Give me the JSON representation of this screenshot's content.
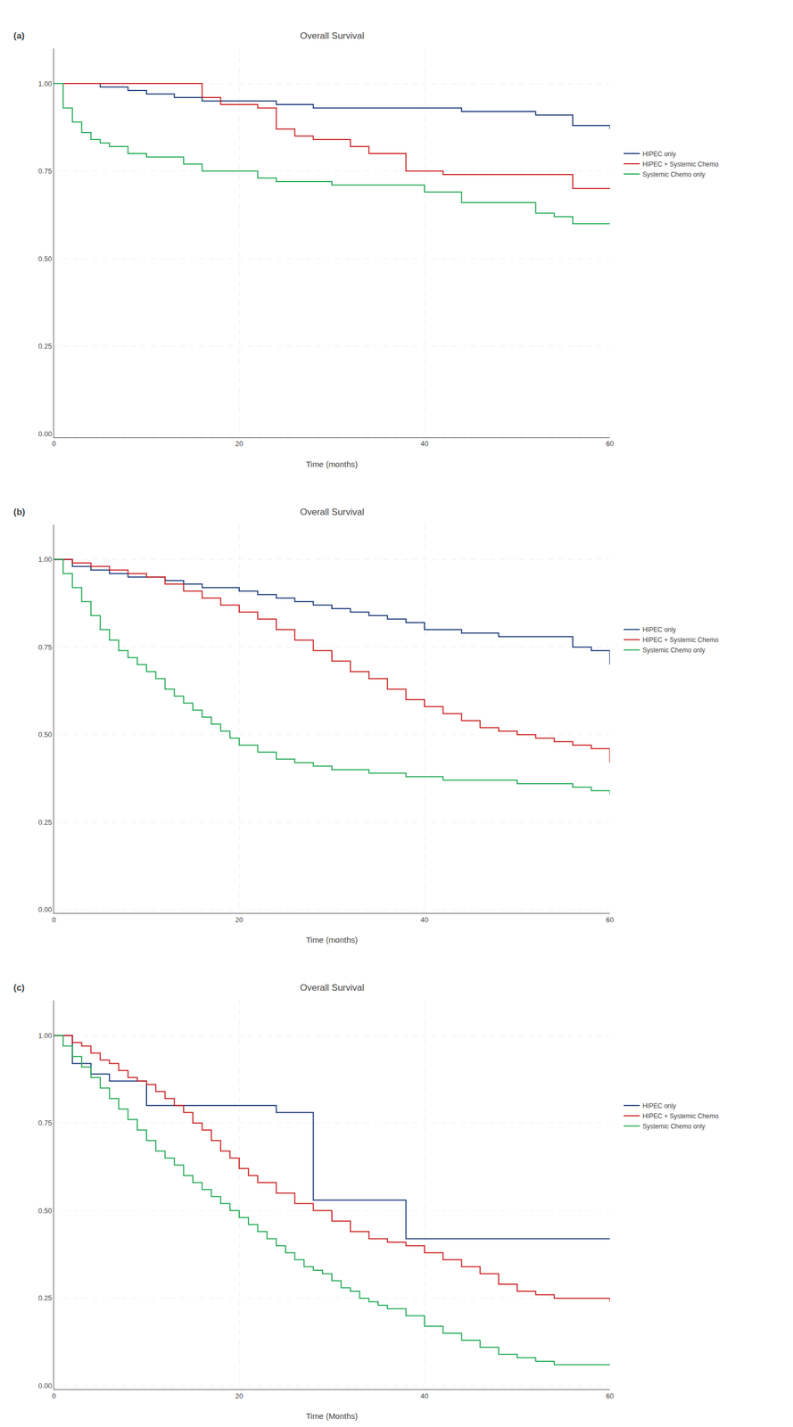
{
  "chart_data": [
    {
      "type": "step",
      "title": "Overall Survival",
      "x_label": "Time (months)",
      "annotations": [
        "(a)"
      ],
      "series": [
        {
          "name": "HIPEC only",
          "color": "#1a3a7a",
          "x": [
            0,
            3,
            5,
            8,
            10,
            13,
            16,
            20,
            24,
            28,
            32,
            36,
            40,
            44,
            48,
            52,
            56,
            60
          ],
          "values": [
            1.0,
            1.0,
            0.99,
            0.98,
            0.97,
            0.96,
            0.95,
            0.95,
            0.94,
            0.93,
            0.93,
            0.93,
            0.93,
            0.92,
            0.92,
            0.91,
            0.88,
            0.87
          ]
        },
        {
          "name": "HIPEC + Systemic Chemo",
          "color": "#cc2222",
          "x": [
            0,
            14,
            16,
            18,
            22,
            24,
            26,
            28,
            30,
            32,
            34,
            36,
            38,
            40,
            42,
            44,
            56,
            60
          ],
          "values": [
            1.0,
            1.0,
            0.96,
            0.94,
            0.93,
            0.87,
            0.85,
            0.84,
            0.84,
            0.82,
            0.8,
            0.8,
            0.75,
            0.75,
            0.74,
            0.74,
            0.7,
            0.7
          ]
        },
        {
          "name": "Systemic Chemo only",
          "color": "#22aa55",
          "x": [
            0,
            1,
            2,
            3,
            4,
            5,
            6,
            8,
            10,
            12,
            14,
            16,
            18,
            20,
            22,
            24,
            26,
            28,
            30,
            32,
            34,
            40,
            44,
            48,
            52,
            54,
            56,
            60
          ],
          "values": [
            1.0,
            0.93,
            0.89,
            0.86,
            0.84,
            0.83,
            0.82,
            0.8,
            0.79,
            0.79,
            0.77,
            0.75,
            0.75,
            0.75,
            0.73,
            0.72,
            0.72,
            0.72,
            0.71,
            0.71,
            0.71,
            0.69,
            0.66,
            0.66,
            0.63,
            0.62,
            0.6,
            0.6
          ]
        }
      ],
      "xlim": [
        0,
        60
      ],
      "xticks": [
        0,
        20,
        40,
        60
      ],
      "ylim": [
        -0.01,
        1.1
      ],
      "yticks": [
        {
          "value": 0,
          "label": "0.00"
        },
        0.25,
        {
          "value": 0.5,
          "label": "0.50"
        },
        0.75,
        {
          "value": 1,
          "label": "1.00"
        }
      ],
      "grid": true,
      "legend": "right"
    },
    {
      "type": "step",
      "title": "Overall Survival",
      "x_label": "Time (months)",
      "annotations": [
        "(b)"
      ],
      "series": [
        {
          "name": "HIPEC only",
          "color": "#1a3a7a",
          "x": [
            0,
            2,
            4,
            6,
            8,
            10,
            12,
            14,
            16,
            18,
            20,
            22,
            24,
            26,
            28,
            30,
            32,
            34,
            36,
            38,
            40,
            44,
            48,
            56,
            58,
            60
          ],
          "values": [
            1.0,
            0.98,
            0.97,
            0.96,
            0.95,
            0.95,
            0.94,
            0.93,
            0.92,
            0.92,
            0.91,
            0.9,
            0.89,
            0.88,
            0.87,
            0.86,
            0.85,
            0.84,
            0.83,
            0.82,
            0.8,
            0.79,
            0.78,
            0.75,
            0.74,
            0.7
          ]
        },
        {
          "name": "HIPEC + Systemic Chemo",
          "color": "#cc2222",
          "x": [
            0,
            2,
            4,
            6,
            8,
            10,
            12,
            14,
            16,
            18,
            20,
            22,
            24,
            26,
            28,
            30,
            32,
            34,
            36,
            38,
            40,
            42,
            44,
            46,
            48,
            50,
            52,
            54,
            56,
            58,
            60
          ],
          "values": [
            1.0,
            0.99,
            0.98,
            0.97,
            0.96,
            0.95,
            0.93,
            0.91,
            0.89,
            0.87,
            0.85,
            0.83,
            0.8,
            0.77,
            0.74,
            0.71,
            0.68,
            0.66,
            0.63,
            0.6,
            0.58,
            0.56,
            0.54,
            0.52,
            0.51,
            0.5,
            0.49,
            0.48,
            0.47,
            0.46,
            0.42
          ]
        },
        {
          "name": "Systemic Chemo only",
          "color": "#22aa55",
          "x": [
            0,
            1,
            2,
            3,
            4,
            5,
            6,
            7,
            8,
            9,
            10,
            11,
            12,
            13,
            14,
            15,
            16,
            17,
            18,
            19,
            20,
            22,
            24,
            26,
            28,
            30,
            32,
            34,
            36,
            38,
            40,
            42,
            44,
            50,
            56,
            58,
            60
          ],
          "values": [
            1.0,
            0.96,
            0.92,
            0.88,
            0.84,
            0.8,
            0.77,
            0.74,
            0.72,
            0.7,
            0.68,
            0.66,
            0.63,
            0.61,
            0.59,
            0.57,
            0.55,
            0.53,
            0.51,
            0.49,
            0.47,
            0.45,
            0.43,
            0.42,
            0.41,
            0.4,
            0.4,
            0.39,
            0.39,
            0.38,
            0.38,
            0.37,
            0.37,
            0.36,
            0.35,
            0.34,
            0.33
          ]
        }
      ],
      "xlim": [
        0,
        60
      ],
      "xticks": [
        0,
        20,
        40,
        60
      ],
      "ylim": [
        -0.01,
        1.1
      ],
      "yticks": [
        {
          "value": 0,
          "label": "0.00"
        },
        0.25,
        {
          "value": 0.5,
          "label": "0.50"
        },
        0.75,
        {
          "value": 1,
          "label": "1.00"
        }
      ],
      "grid": true,
      "legend": "right"
    },
    {
      "type": "step",
      "title": "Overall Survival",
      "x_label": "Time (Months)",
      "annotations": [
        "(c)"
      ],
      "series": [
        {
          "name": "HIPEC only",
          "color": "#1a3a7a",
          "x": [
            0,
            2,
            4,
            6,
            8,
            10,
            22,
            24,
            26,
            28,
            30,
            32,
            34,
            36,
            38,
            40,
            42,
            60
          ],
          "values": [
            1.0,
            0.92,
            0.89,
            0.87,
            0.87,
            0.8,
            0.8,
            0.78,
            0.78,
            0.53,
            0.53,
            0.53,
            0.53,
            0.53,
            0.42,
            0.42,
            0.42,
            0.42
          ]
        },
        {
          "name": "HIPEC + Systemic Chemo",
          "color": "#cc2222",
          "x": [
            0,
            2,
            3,
            4,
            5,
            6,
            7,
            8,
            9,
            10,
            11,
            12,
            13,
            14,
            15,
            16,
            17,
            18,
            19,
            20,
            21,
            22,
            24,
            26,
            28,
            30,
            32,
            34,
            36,
            38,
            40,
            42,
            44,
            46,
            48,
            50,
            52,
            54,
            60
          ],
          "values": [
            1.0,
            0.98,
            0.97,
            0.95,
            0.93,
            0.92,
            0.9,
            0.88,
            0.87,
            0.86,
            0.84,
            0.82,
            0.8,
            0.78,
            0.75,
            0.73,
            0.7,
            0.67,
            0.65,
            0.62,
            0.6,
            0.58,
            0.55,
            0.52,
            0.5,
            0.47,
            0.44,
            0.42,
            0.41,
            0.4,
            0.38,
            0.36,
            0.34,
            0.32,
            0.29,
            0.27,
            0.26,
            0.25,
            0.24
          ]
        },
        {
          "name": "Systemic Chemo only",
          "color": "#22aa55",
          "x": [
            0,
            1,
            2,
            3,
            4,
            5,
            6,
            7,
            8,
            9,
            10,
            11,
            12,
            13,
            14,
            15,
            16,
            17,
            18,
            19,
            20,
            21,
            22,
            23,
            24,
            25,
            26,
            27,
            28,
            29,
            30,
            31,
            32,
            33,
            34,
            35,
            36,
            38,
            40,
            42,
            44,
            46,
            48,
            50,
            52,
            54,
            56,
            58,
            60
          ],
          "values": [
            1.0,
            0.97,
            0.94,
            0.91,
            0.88,
            0.85,
            0.82,
            0.79,
            0.76,
            0.73,
            0.7,
            0.67,
            0.65,
            0.63,
            0.6,
            0.58,
            0.56,
            0.54,
            0.52,
            0.5,
            0.48,
            0.46,
            0.44,
            0.42,
            0.4,
            0.38,
            0.36,
            0.34,
            0.33,
            0.32,
            0.3,
            0.28,
            0.27,
            0.25,
            0.24,
            0.23,
            0.22,
            0.2,
            0.17,
            0.15,
            0.13,
            0.11,
            0.09,
            0.08,
            0.07,
            0.06,
            0.06,
            0.06,
            0.06
          ]
        }
      ],
      "xlim": [
        0,
        60
      ],
      "xticks": [
        0,
        20,
        40,
        60
      ],
      "ylim": [
        -0.01,
        1.1
      ],
      "yticks": [
        {
          "value": 0,
          "label": "0.00"
        },
        0.25,
        {
          "value": 0.5,
          "label": "0.50"
        },
        0.75,
        {
          "value": 1,
          "label": "1.00"
        }
      ],
      "grid": true,
      "legend": "right"
    }
  ]
}
